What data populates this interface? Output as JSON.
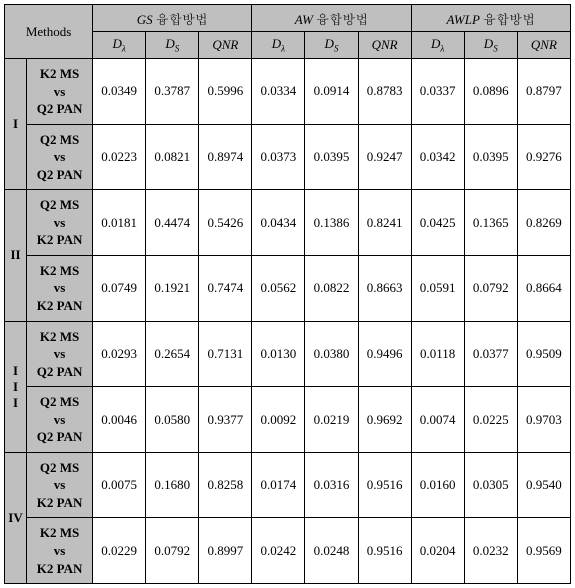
{
  "header": {
    "methods_label": "Methods",
    "groups": [
      {
        "prefix": "GS",
        "suffix": " 융합방법"
      },
      {
        "prefix": "AW",
        "suffix": " 융합방법"
      },
      {
        "prefix": "AWLP",
        "suffix": " 융합방법"
      }
    ],
    "metrics": {
      "d_lambda_main": "D",
      "d_lambda_sub": "λ",
      "d_s_main": "D",
      "d_s_sub": "S",
      "qnr": "QNR"
    }
  },
  "rows": [
    {
      "group": "I",
      "pairs": [
        {
          "line1": "K2 MS",
          "line2": "vs",
          "line3": "Q2 PAN",
          "v": [
            "0.0349",
            "0.3787",
            "0.5996",
            "0.0334",
            "0.0914",
            "0.8783",
            "0.0337",
            "0.0896",
            "0.8797"
          ]
        },
        {
          "line1": "Q2 MS",
          "line2": "vs",
          "line3": "Q2 PAN",
          "v": [
            "0.0223",
            "0.0821",
            "0.8974",
            "0.0373",
            "0.0395",
            "0.9247",
            "0.0342",
            "0.0395",
            "0.9276"
          ]
        }
      ]
    },
    {
      "group": "II",
      "pairs": [
        {
          "line1": "Q2 MS",
          "line2": "vs",
          "line3": "K2 PAN",
          "v": [
            "0.0181",
            "0.4474",
            "0.5426",
            "0.0434",
            "0.1386",
            "0.8241",
            "0.0425",
            "0.1365",
            "0.8269"
          ]
        },
        {
          "line1": "K2 MS",
          "line2": "vs",
          "line3": "K2 PAN",
          "v": [
            "0.0749",
            "0.1921",
            "0.7474",
            "0.0562",
            "0.0822",
            "0.8663",
            "0.0591",
            "0.0792",
            "0.8664"
          ]
        }
      ]
    },
    {
      "group": "III",
      "pairs": [
        {
          "line1": "K2 MS",
          "line2": "vs",
          "line3": "Q2 PAN",
          "v": [
            "0.0293",
            "0.2654",
            "0.7131",
            "0.0130",
            "0.0380",
            "0.9496",
            "0.0118",
            "0.0377",
            "0.9509"
          ]
        },
        {
          "line1": "Q2 MS",
          "line2": "vs",
          "line3": "Q2 PAN",
          "v": [
            "0.0046",
            "0.0580",
            "0.9377",
            "0.0092",
            "0.0219",
            "0.9692",
            "0.0074",
            "0.0225",
            "0.9703"
          ]
        }
      ]
    },
    {
      "group": "IV",
      "pairs": [
        {
          "line1": "Q2 MS",
          "line2": "vs",
          "line3": "K2 PAN",
          "v": [
            "0.0075",
            "0.1680",
            "0.8258",
            "0.0174",
            "0.0316",
            "0.9516",
            "0.0160",
            "0.0305",
            "0.9540"
          ]
        },
        {
          "line1": "K2 MS",
          "line2": "vs",
          "line3": "K2 PAN",
          "v": [
            "0.0229",
            "0.0792",
            "0.8997",
            "0.0242",
            "0.0248",
            "0.9516",
            "0.0204",
            "0.0232",
            "0.9569"
          ]
        }
      ]
    }
  ]
}
